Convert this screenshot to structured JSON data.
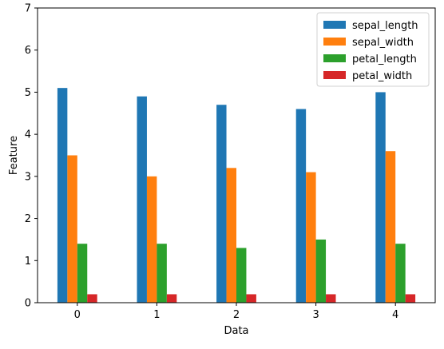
{
  "chart_data": {
    "type": "bar",
    "xlabel": "Data",
    "ylabel": "Feature",
    "categories": [
      "0",
      "1",
      "2",
      "3",
      "4"
    ],
    "ylim": [
      0,
      7
    ],
    "yticks": [
      "0",
      "1",
      "2",
      "3",
      "4",
      "5",
      "6",
      "7"
    ],
    "legend_position": "top-right",
    "grid": false,
    "series": [
      {
        "name": "sepal_length",
        "color": "#1f77b4",
        "values": [
          5.1,
          4.9,
          4.7,
          4.6,
          5.0
        ]
      },
      {
        "name": "sepal_width",
        "color": "#ff7f0e",
        "values": [
          3.5,
          3.0,
          3.2,
          3.1,
          3.6
        ]
      },
      {
        "name": "petal_length",
        "color": "#2ca02c",
        "values": [
          1.4,
          1.4,
          1.3,
          1.5,
          1.4
        ]
      },
      {
        "name": "petal_width",
        "color": "#d62728",
        "values": [
          0.2,
          0.2,
          0.2,
          0.2,
          0.2
        ]
      }
    ]
  }
}
